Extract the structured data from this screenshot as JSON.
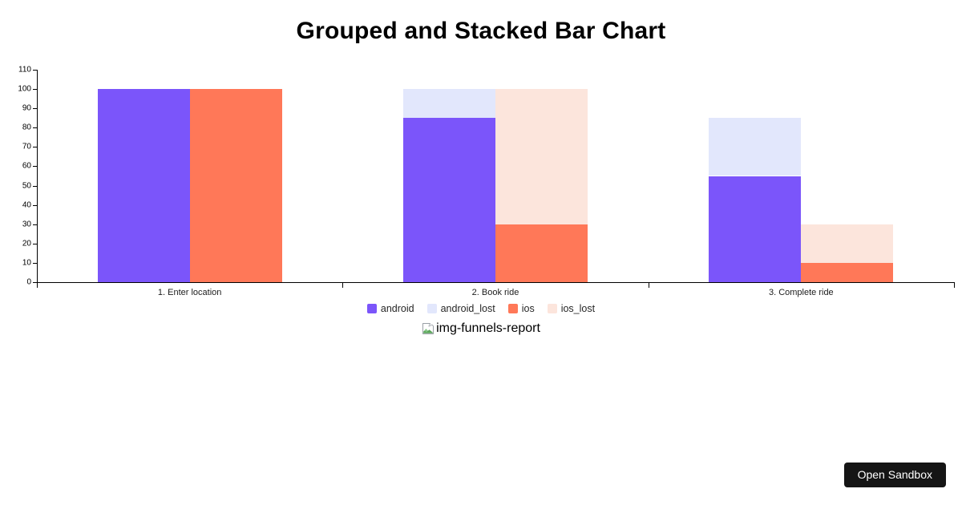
{
  "header": {
    "title": "Grouped and Stacked Bar Chart"
  },
  "chart_data": {
    "type": "bar",
    "variant": "grouped-and-stacked",
    "title": "Grouped and Stacked Bar Chart",
    "categories": [
      "1. Enter location",
      "2. Book ride",
      "3. Complete ride"
    ],
    "series": [
      {
        "name": "android",
        "stack": "android",
        "color": "#7B55FA",
        "values": [
          100,
          85,
          55
        ]
      },
      {
        "name": "android_lost",
        "stack": "android",
        "color": "#E2E7FC",
        "values": [
          0,
          15,
          30
        ]
      },
      {
        "name": "ios",
        "stack": "ios",
        "color": "#FF7858",
        "values": [
          100,
          30,
          10
        ]
      },
      {
        "name": "ios_lost",
        "stack": "ios",
        "color": "#FCE5DC",
        "values": [
          0,
          70,
          20
        ]
      }
    ],
    "yticks": [
      0,
      10,
      20,
      30,
      40,
      50,
      60,
      70,
      80,
      90,
      100,
      110
    ],
    "ylim": [
      0,
      110
    ],
    "grid": false,
    "legend_position": "bottom",
    "legend": [
      "android",
      "android_lost",
      "ios",
      "ios_lost"
    ]
  },
  "attachment": {
    "broken_image_alt": "img-funnels-report"
  },
  "footer": {
    "open_sandbox_label": "Open Sandbox"
  },
  "colors": {
    "background": "#ffffff",
    "axis": "#000000",
    "android": "#7B55FA",
    "android_lost": "#E2E7FC",
    "ios": "#FF7858",
    "ios_lost": "#FCE5DC",
    "button_bg": "#151515",
    "button_text": "#ffffff"
  }
}
